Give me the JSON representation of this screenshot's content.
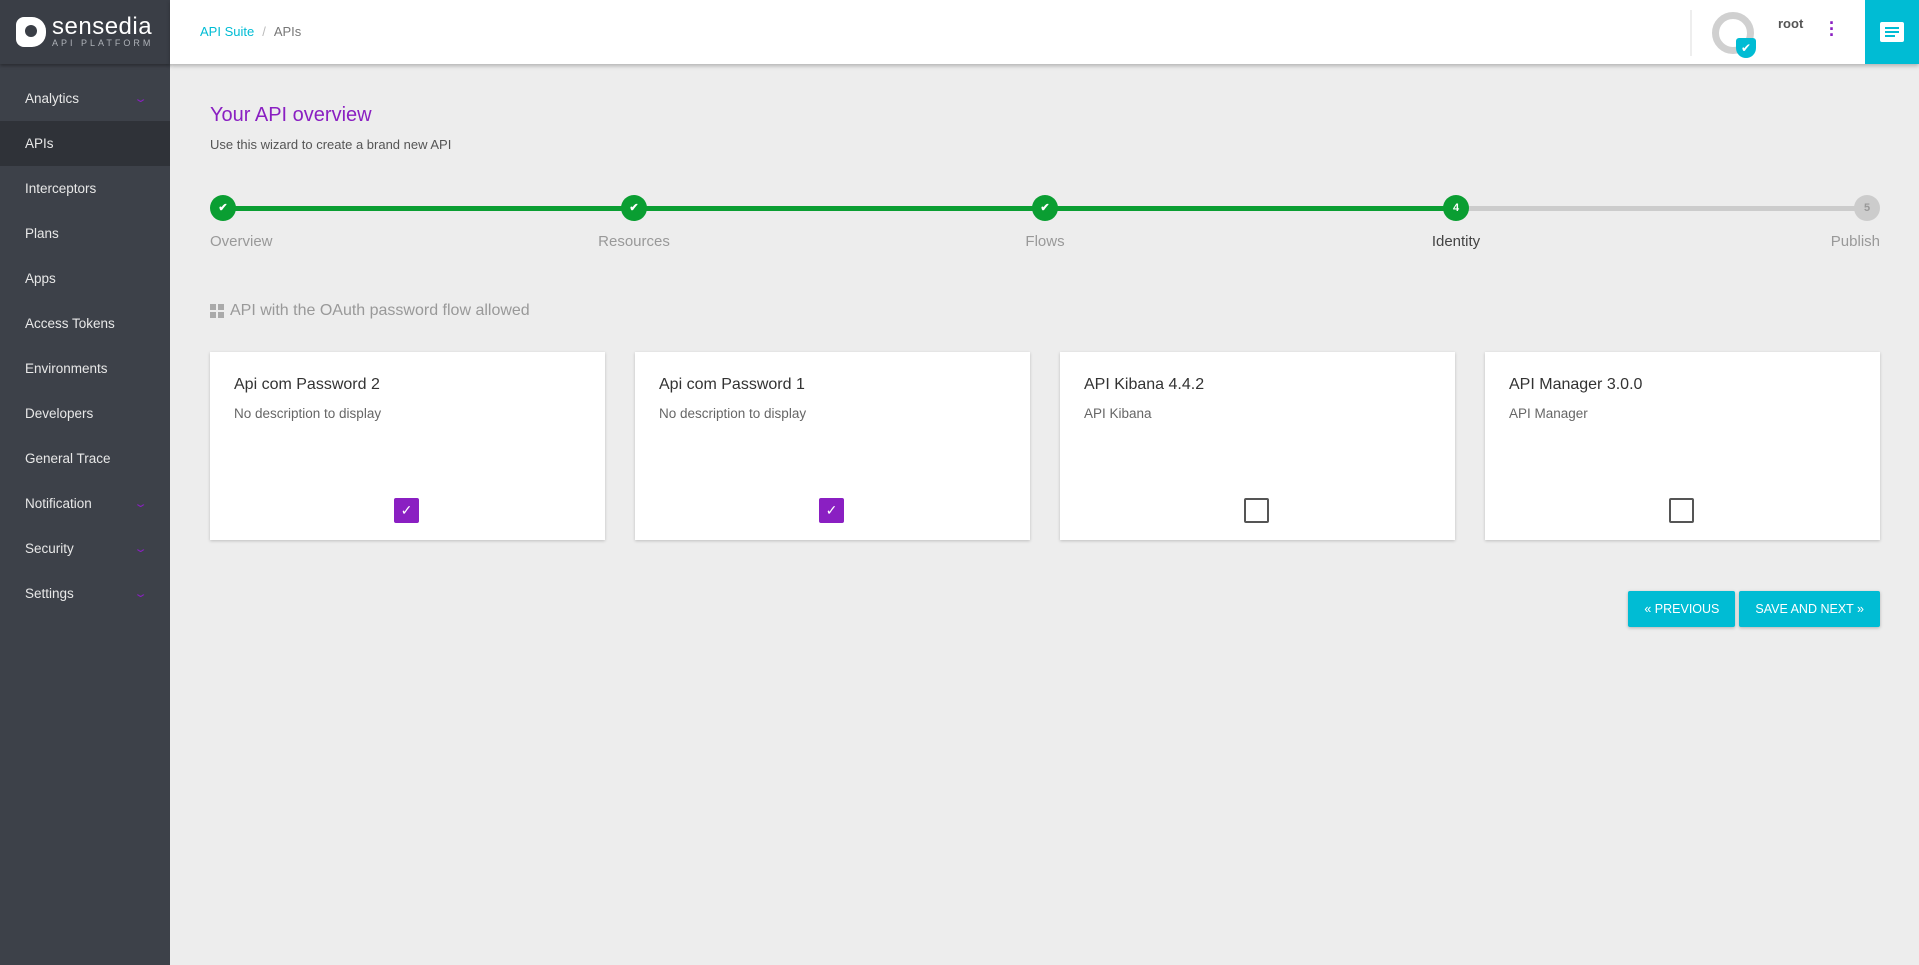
{
  "logo": {
    "name": "sensedia",
    "sub": "API PLATFORM"
  },
  "sidebar": {
    "items": [
      {
        "label": "Analytics",
        "expand": true
      },
      {
        "label": "APIs",
        "active": true
      },
      {
        "label": "Interceptors"
      },
      {
        "label": "Plans"
      },
      {
        "label": "Apps"
      },
      {
        "label": "Access Tokens"
      },
      {
        "label": "Environments"
      },
      {
        "label": "Developers"
      },
      {
        "label": "General Trace"
      },
      {
        "label": "Notification",
        "expand": true
      },
      {
        "label": "Security",
        "expand": true
      },
      {
        "label": "Settings",
        "expand": true
      }
    ]
  },
  "header": {
    "breadcrumb": [
      "API Suite",
      "APIs"
    ],
    "user": "root"
  },
  "main": {
    "title": "Your API overview",
    "subtitle": "Use this wizard to create a brand new API",
    "steps": [
      {
        "label": "Overview",
        "state": "done"
      },
      {
        "label": "Resources",
        "state": "done"
      },
      {
        "label": "Flows",
        "state": "done"
      },
      {
        "label": "Identity",
        "state": "current",
        "num": "4"
      },
      {
        "label": "Publish",
        "state": "pending",
        "num": "5"
      }
    ],
    "section": "API with the OAuth password flow allowed",
    "cards": [
      {
        "title": "Api com Password 2",
        "desc": "No description to display",
        "checked": true
      },
      {
        "title": "Api com Password 1",
        "desc": "No description to display",
        "checked": true
      },
      {
        "title": "API Kibana 4.4.2",
        "desc": "API Kibana",
        "checked": false
      },
      {
        "title": "API Manager 3.0.0",
        "desc": "API Manager",
        "checked": false
      }
    ],
    "prev": "« PREVIOUS",
    "next": "SAVE AND NEXT »"
  },
  "colors": {
    "accent": "#8a1fc2",
    "primary": "#00bcd4",
    "success": "#0a9e32",
    "sidebar": "#3d4149"
  }
}
